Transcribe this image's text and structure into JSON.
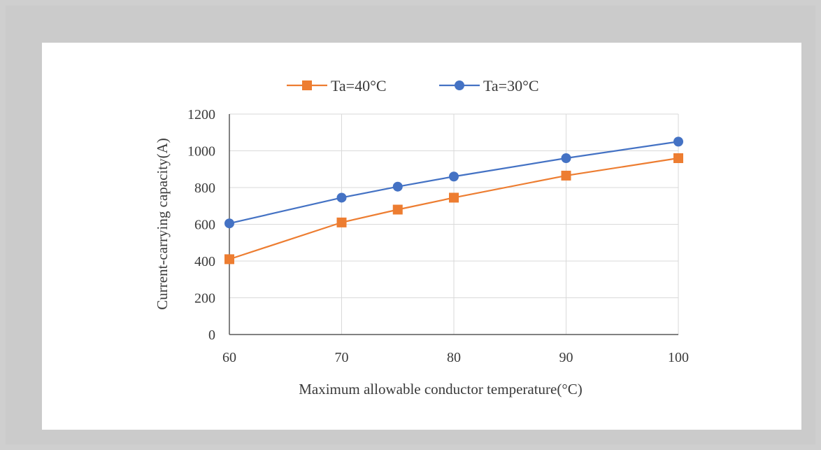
{
  "chart_data": {
    "type": "line",
    "title": "",
    "xlabel": "Maximum allowable conductor temperature(°C)",
    "ylabel": "Current-carrying capacity(A)",
    "x": [
      60,
      70,
      75,
      80,
      90,
      100
    ],
    "xticks": [
      60,
      70,
      80,
      90,
      100
    ],
    "xtick_labels": [
      "60",
      "70",
      "80",
      "90",
      "100"
    ],
    "yticks": [
      0,
      200,
      400,
      600,
      800,
      1000,
      1200
    ],
    "ytick_labels": [
      "0",
      "200",
      "400",
      "600",
      "800",
      "1000",
      "1200"
    ],
    "xlim": [
      60,
      100
    ],
    "ylim": [
      0,
      1200
    ],
    "grid": true,
    "legend_position": "top",
    "series": [
      {
        "name": "Ta=40°C",
        "color": "#ED7D31",
        "marker": "square",
        "values": [
          410,
          610,
          680,
          745,
          865,
          960
        ]
      },
      {
        "name": "Ta=30°C",
        "color": "#4472C4",
        "marker": "circle",
        "values": [
          605,
          745,
          805,
          860,
          960,
          1050
        ]
      }
    ]
  }
}
